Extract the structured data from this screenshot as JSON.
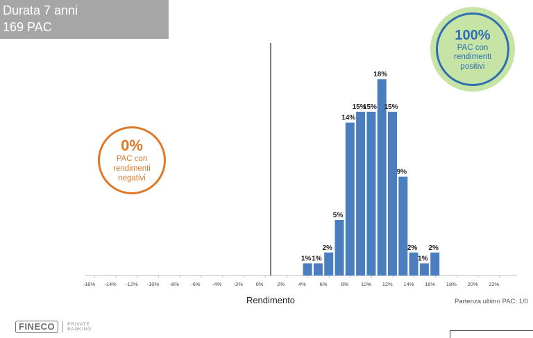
{
  "header": {
    "line1": "Durata 7 anni",
    "line2": "169 PAC"
  },
  "negative_badge": {
    "percent": "0%",
    "line1": "PAC con",
    "line2": "rendimenti",
    "line3": "negativi",
    "color": "#e0782a"
  },
  "positive_badge": {
    "percent": "100%",
    "line1": "PAC con",
    "line2": "rendimenti",
    "line3": "positivi",
    "color": "#2f6fb0",
    "fill": "#c6e4a6"
  },
  "footnote": "Partenza ultimo PAC: 1/0",
  "logo": {
    "name": "FINECO",
    "sub1": "PRIVATE",
    "sub2": "BANKING"
  },
  "chart_data": {
    "type": "bar",
    "xlabel": "Rendimento",
    "ylabel": "",
    "bar_color": "#4a7ebf",
    "x_ticks": [
      "-16%",
      "-14%",
      "-12%",
      "-10%",
      "-8%",
      "-6%",
      "-4%",
      "-2%",
      "0%",
      "2%",
      "4%",
      "6%",
      "8%",
      "10%",
      "12%",
      "14%",
      "16%",
      "18%",
      "20%",
      "22%"
    ],
    "xlim": [
      -17,
      23
    ],
    "ylim": [
      0,
      19
    ],
    "bars": [
      {
        "x": 2,
        "value": 1,
        "label": "1%"
      },
      {
        "x": 3,
        "value": 1,
        "label": "1%"
      },
      {
        "x": 4,
        "value": 2,
        "label": "2%"
      },
      {
        "x": 5,
        "value": 5,
        "label": "5%"
      },
      {
        "x": 6,
        "value": 14,
        "label": "14%"
      },
      {
        "x": 7,
        "value": 15,
        "label": "15%"
      },
      {
        "x": 8,
        "value": 15,
        "label": "15%"
      },
      {
        "x": 9,
        "value": 18,
        "label": "18%"
      },
      {
        "x": 10,
        "value": 15,
        "label": "15%"
      },
      {
        "x": 11,
        "value": 9,
        "label": "9%"
      },
      {
        "x": 12,
        "value": 2,
        "label": "2%"
      },
      {
        "x": 13,
        "value": 1,
        "label": "1%"
      },
      {
        "x": 14,
        "value": 2,
        "label": "2%"
      }
    ],
    "vertical_line_at": 0
  }
}
